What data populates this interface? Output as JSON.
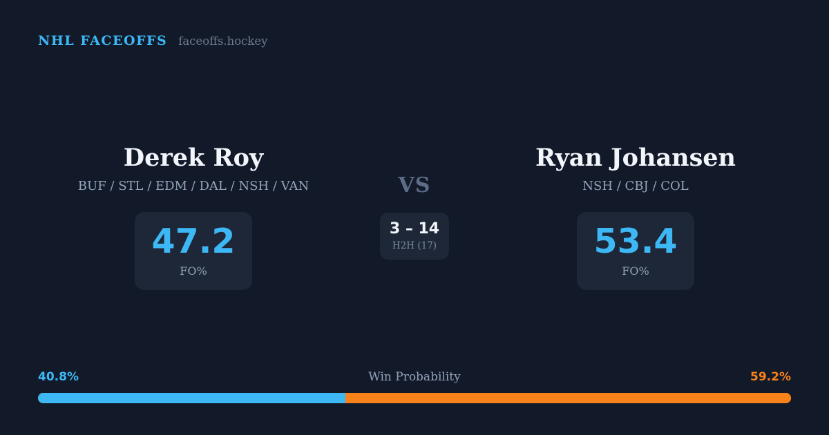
{
  "header": {
    "brand": "NHL FACEOFFS",
    "site": "faceoffs.hockey"
  },
  "matchup": {
    "vs_label": "VS",
    "h2h": {
      "record": "3 – 14",
      "label": "H2H (17)"
    },
    "players": [
      {
        "name": "Derek Roy",
        "teams": "BUF / STL / EDM / DAL / NSH / VAN",
        "fo_pct": "47.2",
        "fo_label": "FO%"
      },
      {
        "name": "Ryan Johansen",
        "teams": "NSH / CBJ / COL",
        "fo_pct": "53.4",
        "fo_label": "FO%"
      }
    ]
  },
  "win_probability": {
    "label": "Win Probability",
    "left_pct_text": "40.8%",
    "right_pct_text": "59.2%",
    "left_value": 40.8,
    "right_value": 59.2
  },
  "colors": {
    "bg": "#121a2a",
    "card": "#1d2737",
    "blue": "#3db8f5",
    "orange": "#f8821a",
    "text": "#f2f5fa",
    "muted": "#94a3b8",
    "vs": "#5d6d88",
    "site": "#6e7a8e",
    "h2h_muted": "#7e8ca3"
  }
}
